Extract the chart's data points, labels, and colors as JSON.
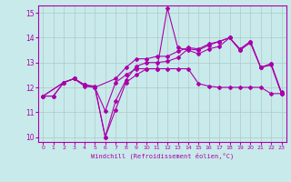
{
  "background_color": "#c8eaea",
  "grid_color": "#b0c8c8",
  "line_color": "#aa00aa",
  "marker_color": "#aa00aa",
  "xlabel": "Windchill (Refroidissement éolien,°C)",
  "ylabel": "",
  "xlim": [
    -0.5,
    23.5
  ],
  "ylim": [
    9.8,
    15.3
  ],
  "yticks": [
    10,
    11,
    12,
    13,
    14,
    15
  ],
  "xticks": [
    0,
    1,
    2,
    3,
    4,
    5,
    6,
    7,
    8,
    9,
    10,
    11,
    12,
    13,
    14,
    15,
    16,
    17,
    18,
    19,
    20,
    21,
    22,
    23
  ],
  "series": {
    "line1": {
      "x": [
        0,
        1,
        2,
        3,
        4,
        5,
        6,
        7,
        8,
        9,
        10,
        11,
        12,
        13,
        14,
        15,
        16,
        17,
        18,
        19,
        20,
        21,
        22,
        23
      ],
      "y": [
        11.65,
        11.65,
        12.2,
        12.35,
        12.1,
        12.05,
        10.0,
        11.1,
        12.2,
        12.5,
        12.75,
        12.75,
        15.2,
        13.6,
        13.5,
        13.35,
        13.55,
        13.65,
        14.0,
        13.5,
        13.8,
        12.8,
        12.9,
        11.75
      ]
    },
    "line2": {
      "x": [
        0,
        1,
        2,
        3,
        4,
        5,
        6,
        7,
        8,
        9,
        10,
        11,
        12,
        13,
        14,
        15,
        16,
        17,
        18,
        19,
        20,
        21,
        22,
        23
      ],
      "y": [
        11.65,
        11.65,
        12.2,
        12.35,
        12.05,
        12.0,
        10.0,
        11.45,
        12.3,
        12.85,
        13.0,
        13.0,
        13.05,
        13.2,
        13.55,
        13.5,
        13.7,
        13.85,
        14.0,
        13.55,
        13.85,
        12.8,
        12.95,
        11.8
      ]
    },
    "line3": {
      "x": [
        0,
        2,
        3,
        4,
        5,
        6,
        7,
        8,
        9,
        10,
        11,
        12,
        13,
        14,
        15,
        16,
        17,
        18,
        19,
        20,
        21,
        22,
        23
      ],
      "y": [
        11.65,
        12.2,
        12.35,
        12.1,
        12.0,
        11.05,
        12.2,
        12.5,
        12.75,
        12.75,
        12.75,
        12.75,
        12.75,
        12.75,
        12.15,
        12.05,
        12.0,
        12.0,
        12.0,
        12.0,
        12.0,
        11.75,
        11.75
      ]
    },
    "line4": {
      "x": [
        0,
        2,
        3,
        4,
        5,
        7,
        8,
        9,
        10,
        11,
        12,
        13,
        14,
        15,
        16,
        17,
        18,
        19,
        20,
        21,
        22,
        23
      ],
      "y": [
        11.65,
        12.2,
        12.35,
        12.1,
        12.0,
        12.35,
        12.8,
        13.15,
        13.15,
        13.25,
        13.25,
        13.45,
        13.6,
        13.55,
        13.75,
        13.85,
        14.0,
        13.5,
        13.85,
        12.8,
        12.95,
        11.75
      ]
    }
  }
}
